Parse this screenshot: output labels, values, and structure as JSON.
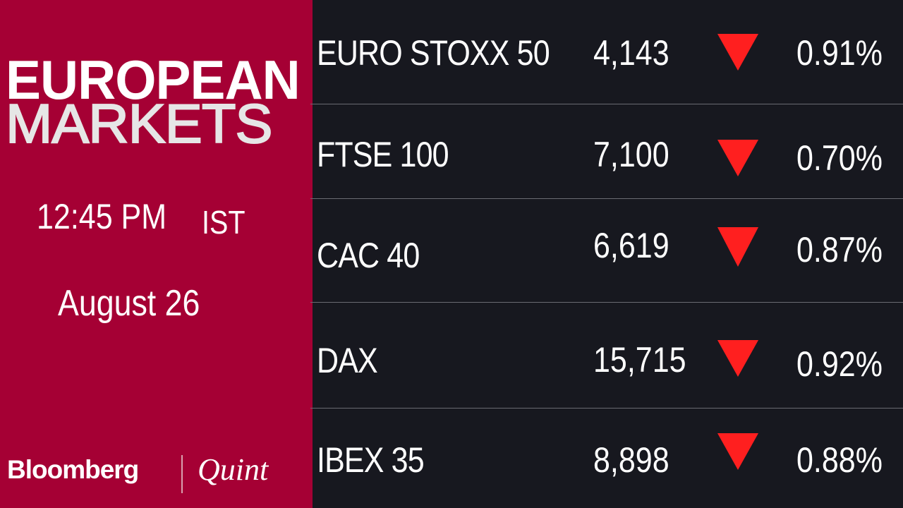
{
  "panel": {
    "title_line1": "EUROPEAN",
    "title_line2": "MARKETS",
    "time": "12:45 PM",
    "timezone": "IST",
    "date": "August 26",
    "brand_bloomberg": "Bloomberg",
    "brand_quint": "Quint",
    "background_color": "#a50034"
  },
  "indices": [
    {
      "name": "EURO STOXX 50",
      "value": "4,143",
      "direction": "down",
      "change": "0.91%"
    },
    {
      "name": "FTSE 100",
      "value": "7,100",
      "direction": "down",
      "change": "0.70%"
    },
    {
      "name": "CAC 40",
      "value": "6,619",
      "direction": "down",
      "change": "0.87%"
    },
    {
      "name": "DAX",
      "value": "15,715",
      "direction": "down",
      "change": "0.92%"
    },
    {
      "name": "IBEX 35",
      "value": "8,898",
      "direction": "down",
      "change": "0.88%"
    }
  ],
  "colors": {
    "down_arrow": "#ff1f1f",
    "table_background": "#17181f"
  }
}
